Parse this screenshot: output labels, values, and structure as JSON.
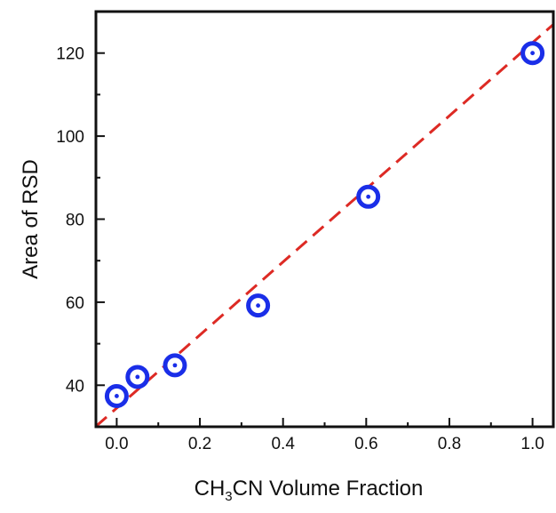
{
  "chart_data": {
    "type": "scatter",
    "xlabel": {
      "prefix": "CH",
      "subscript": "3",
      "suffix": "CN Volume Fraction"
    },
    "ylabel": "Area of RSD",
    "xlim": [
      -0.05,
      1.05
    ],
    "ylim": [
      30,
      130
    ],
    "x_ticks": [
      "0.0",
      "0.2",
      "0.4",
      "0.6",
      "0.8",
      "1.0"
    ],
    "y_ticks": [
      "40",
      "60",
      "80",
      "100",
      "120"
    ],
    "points": [
      {
        "x": 0.0,
        "y": 37.4
      },
      {
        "x": 0.05,
        "y": 42.0
      },
      {
        "x": 0.14,
        "y": 44.8
      },
      {
        "x": 0.34,
        "y": 59.2
      },
      {
        "x": 0.605,
        "y": 85.4
      },
      {
        "x": 1.0,
        "y": 120.0
      }
    ],
    "fit_line": {
      "slope": 88.0,
      "intercept": 34.5
    },
    "colors": {
      "marker": "#1a2ee8",
      "fit_line": "#dd2a24",
      "axis": "#111111"
    }
  }
}
